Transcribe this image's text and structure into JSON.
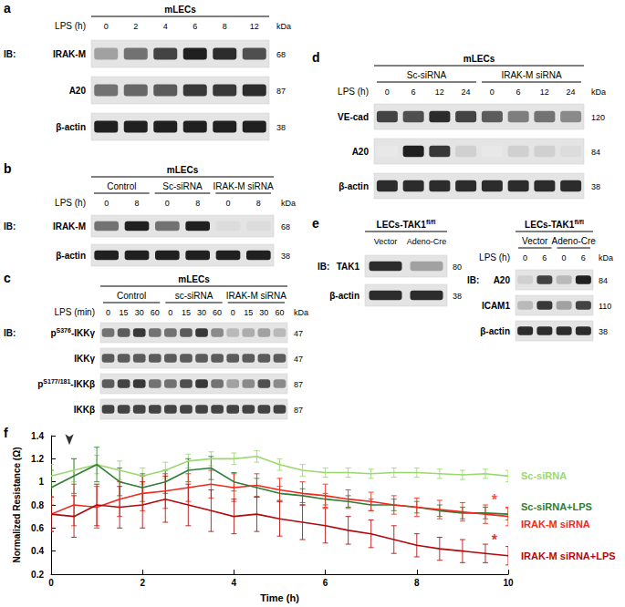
{
  "figure": {
    "panels": [
      {
        "label": "a",
        "title": "mLECs",
        "lanes_label": "LPS (h)",
        "lanes": [
          "0",
          "2",
          "4",
          "6",
          "8",
          "12"
        ],
        "unit": "kDa",
        "ib": "IB:",
        "rows": [
          {
            "label": "IRAK-M",
            "kda": 68,
            "intensity": [
              0.4,
              0.6,
              0.8,
              0.95,
              0.9,
              0.75
            ]
          },
          {
            "label": "A20",
            "kda": 87,
            "intensity": [
              0.6,
              0.65,
              0.7,
              0.85,
              0.85,
              0.9
            ]
          },
          {
            "label": "β-actin",
            "kda": 38,
            "intensity": [
              0.95,
              0.95,
              0.95,
              0.95,
              0.95,
              0.95
            ]
          }
        ]
      },
      {
        "label": "b",
        "title": "mLECs",
        "groups": [
          "Control",
          "Sc-siRNA",
          "IRAK-M siRNA"
        ],
        "lanes_label": "LPS (h)",
        "lanes": [
          "0",
          "8",
          "0",
          "8",
          "0",
          "8"
        ],
        "unit": "kDa",
        "ib": "IB:",
        "rows": [
          {
            "label": "IRAK-M",
            "kda": 68,
            "intensity": [
              0.6,
              0.95,
              0.6,
              0.95,
              0.15,
              0.15
            ]
          },
          {
            "label": "β-actin",
            "kda": 38,
            "intensity": [
              0.95,
              0.95,
              0.95,
              0.95,
              0.95,
              0.95
            ]
          }
        ]
      },
      {
        "label": "c",
        "title": "mLECs",
        "groups": [
          "Control",
          "sc-siRNA",
          "IRAK-M siRNA"
        ],
        "lanes_label": "LPS (min)",
        "lanes": [
          "0",
          "15",
          "30",
          "60",
          "0",
          "15",
          "30",
          "60",
          "0",
          "15",
          "30",
          "60"
        ],
        "unit": "kDa",
        "ib": "IB:",
        "rows": [
          {
            "label": [
              "p",
              {
                "sup": "S376"
              },
              "-IKKγ"
            ],
            "kda": 47,
            "intensity": [
              0.6,
              0.7,
              0.85,
              0.6,
              0.6,
              0.7,
              0.85,
              0.5,
              0.3,
              0.35,
              0.4,
              0.3
            ]
          },
          {
            "label": "IKKγ",
            "kda": 47,
            "intensity": [
              0.7,
              0.7,
              0.7,
              0.7,
              0.7,
              0.7,
              0.7,
              0.7,
              0.7,
              0.7,
              0.7,
              0.7
            ]
          },
          {
            "label": [
              "p",
              {
                "sup": "S177/181"
              },
              "-IKKβ"
            ],
            "kda": 87,
            "intensity": [
              0.7,
              0.8,
              0.85,
              0.6,
              0.6,
              0.75,
              0.85,
              0.6,
              0.4,
              0.5,
              0.75,
              0.5
            ]
          },
          {
            "label": "IKKβ",
            "kda": 87,
            "intensity": [
              0.8,
              0.8,
              0.8,
              0.8,
              0.8,
              0.8,
              0.8,
              0.8,
              0.8,
              0.8,
              0.8,
              0.8
            ]
          }
        ]
      },
      {
        "label": "d",
        "title": "mLECs",
        "groups": [
          "Sc-siRNA",
          "IRAK-M siRNA"
        ],
        "lanes_label": "LPS (h)",
        "lanes": [
          "0",
          "6",
          "12",
          "24",
          "0",
          "6",
          "12",
          "24"
        ],
        "unit": "kDa",
        "rows": [
          {
            "label": "VE-cad",
            "kda": 120,
            "intensity": [
              0.8,
              0.75,
              0.9,
              0.8,
              0.7,
              0.55,
              0.6,
              0.5
            ]
          },
          {
            "label": "A20",
            "kda": 84,
            "intensity": [
              0.1,
              0.95,
              0.85,
              0.2,
              0.1,
              0.2,
              0.2,
              0.15
            ]
          },
          {
            "label": "β-actin",
            "kda": 38,
            "intensity": [
              0.9,
              0.9,
              0.9,
              0.9,
              0.9,
              0.9,
              0.9,
              0.9
            ]
          }
        ]
      },
      {
        "label": "e",
        "subpanels": [
          {
            "title": [
              "LECs-TAK1",
              {
                "sup": "fl/fl"
              }
            ],
            "lanes": [
              "Vector",
              "Adeno-Cre"
            ],
            "ib": "IB:",
            "rows": [
              {
                "label": "TAK1",
                "kda": 80,
                "intensity": [
                  0.9,
                  0.4
                ]
              },
              {
                "label": "β-actin",
                "kda": 38,
                "intensity": [
                  0.9,
                  0.9
                ]
              }
            ]
          },
          {
            "title": [
              "LECs-TAK1",
              {
                "sup": "fl/fl"
              }
            ],
            "groups": [
              "Vector",
              "Adeno-Cre"
            ],
            "lanes_label": "LPS (h)",
            "lanes": [
              "0",
              "6",
              "0",
              "6"
            ],
            "unit": "kDa",
            "ib": "IB:",
            "rows": [
              {
                "label": "A20",
                "kda": 84,
                "intensity": [
                  0.2,
                  0.8,
                  0.3,
                  0.95
                ]
              },
              {
                "label": "ICAM1",
                "kda": 110,
                "intensity": [
                  0.3,
                  0.85,
                  0.4,
                  0.8
                ]
              },
              {
                "label": "β-actin",
                "kda": 38,
                "intensity": [
                  0.9,
                  0.9,
                  0.9,
                  0.9
                ]
              }
            ]
          }
        ]
      }
    ]
  },
  "chart_data": {
    "type": "line",
    "label": "f",
    "xlabel": "Time (h)",
    "ylabel": "Normalized Resistance (Ω)",
    "xlim": [
      0,
      10
    ],
    "xticks": [
      0,
      2,
      4,
      6,
      8,
      10
    ],
    "ylim": [
      0.2,
      1.4
    ],
    "yticks": [
      0.2,
      0.4,
      0.6,
      0.8,
      1,
      1.2,
      1.4
    ],
    "grid": false,
    "x": [
      0,
      0.5,
      1,
      1.5,
      2,
      2.5,
      3,
      3.5,
      4,
      4.5,
      5,
      5.5,
      6,
      6.5,
      7,
      7.5,
      8,
      8.5,
      9,
      9.5,
      10
    ],
    "series": [
      {
        "name": "Sc-siRNA",
        "color": "#9ad86e",
        "values": [
          1.05,
          1.1,
          1.15,
          1.1,
          1.05,
          1.1,
          1.18,
          1.2,
          1.2,
          1.22,
          1.15,
          1.1,
          1.08,
          1.08,
          1.07,
          1.08,
          1.08,
          1.07,
          1.06,
          1.07,
          1.05
        ],
        "errors": [
          0.1,
          0.1,
          0.08,
          0.08,
          0.07,
          0.07,
          0.06,
          0.06,
          0.05,
          0.05,
          0.05,
          0.05,
          0.04,
          0.04,
          0.04,
          0.04,
          0.04,
          0.04,
          0.04,
          0.04,
          0.05
        ]
      },
      {
        "name": "Sc-siRNA+LPS",
        "color": "#2f7d32",
        "values": [
          0.95,
          1.05,
          1.15,
          1.0,
          0.95,
          1.0,
          1.1,
          1.12,
          1.0,
          0.95,
          0.9,
          0.88,
          0.85,
          0.83,
          0.8,
          0.8,
          0.78,
          0.75,
          0.73,
          0.73,
          0.72
        ],
        "errors": [
          0.15,
          0.15,
          0.15,
          0.12,
          0.12,
          0.1,
          0.1,
          0.1,
          0.08,
          0.08,
          0.06,
          0.06,
          0.05,
          0.05,
          0.05,
          0.05,
          0.05,
          0.05,
          0.05,
          0.05,
          0.05
        ]
      },
      {
        "name": "IRAK-M siRNA",
        "color": "#f0281e",
        "values": [
          0.72,
          0.8,
          0.78,
          0.85,
          0.9,
          0.92,
          0.95,
          0.98,
          0.95,
          0.97,
          0.93,
          0.9,
          0.88,
          0.85,
          0.83,
          0.8,
          0.78,
          0.76,
          0.74,
          0.72,
          0.7
        ],
        "errors": [
          0.15,
          0.18,
          0.18,
          0.15,
          0.15,
          0.15,
          0.12,
          0.12,
          0.12,
          0.1,
          0.1,
          0.1,
          0.1,
          0.08,
          0.08,
          0.08,
          0.08,
          0.08,
          0.08,
          0.08,
          0.08
        ]
      },
      {
        "name": "IRAK-M siRNA+LPS",
        "color": "#b3080b",
        "values": [
          0.72,
          0.7,
          0.8,
          0.78,
          0.8,
          0.85,
          0.8,
          0.75,
          0.7,
          0.72,
          0.68,
          0.65,
          0.62,
          0.58,
          0.55,
          0.5,
          0.45,
          0.42,
          0.4,
          0.38,
          0.36
        ],
        "errors": [
          0.15,
          0.18,
          0.18,
          0.18,
          0.2,
          0.2,
          0.18,
          0.18,
          0.15,
          0.15,
          0.15,
          0.15,
          0.15,
          0.12,
          0.12,
          0.12,
          0.1,
          0.1,
          0.1,
          0.08,
          0.08
        ]
      }
    ],
    "annotations": [
      {
        "x": 9.7,
        "y": 0.84,
        "text": "*",
        "color": "#f0281e"
      },
      {
        "x": 9.7,
        "y": 0.5,
        "text": "*",
        "color": "#b3080b"
      },
      {
        "x": 0.4,
        "y": 1.32,
        "marker": "arrow",
        "color": "#000000"
      }
    ]
  }
}
